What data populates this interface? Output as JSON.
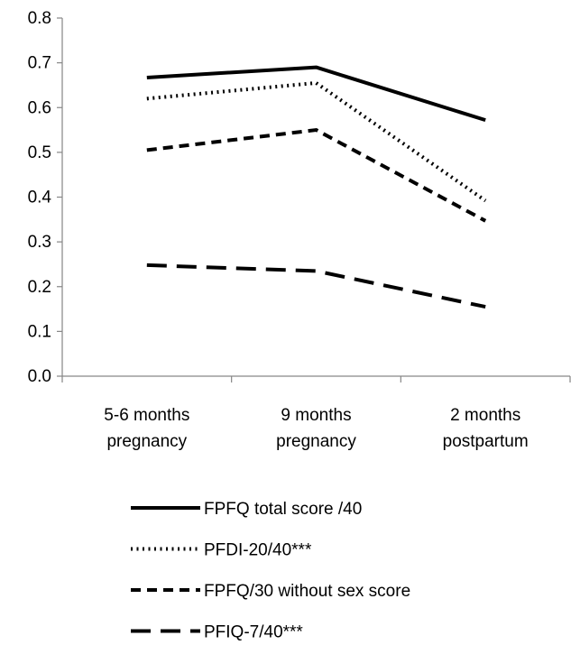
{
  "chart_data": {
    "type": "line",
    "title": "",
    "xlabel": "",
    "ylabel": "",
    "categories": [
      [
        "5-6 months",
        "pregnancy"
      ],
      [
        "9 months",
        "pregnancy"
      ],
      [
        "2 months",
        "postpartum"
      ]
    ],
    "ylim": [
      0,
      0.8
    ],
    "yticks": [
      "0.0",
      "0.1",
      "0.2",
      "0.3",
      "0.4",
      "0.5",
      "0.6",
      "0.7",
      "0.8"
    ],
    "grid": false,
    "legend_position": "bottom",
    "series": [
      {
        "name": "FPFQ total score /40",
        "values": [
          0.667,
          0.69,
          0.572
        ],
        "style": "solid",
        "color": "#000000"
      },
      {
        "name": "PFDI-20/40***",
        "values": [
          0.62,
          0.655,
          0.392
        ],
        "style": "dotted",
        "color": "#000000"
      },
      {
        "name": "FPFQ/30 without sex score",
        "values": [
          0.505,
          0.55,
          0.347
        ],
        "style": "dashed",
        "color": "#000000"
      },
      {
        "name": "PFIQ-7/40***",
        "values": [
          0.248,
          0.235,
          0.155
        ],
        "style": "long-dash",
        "color": "#000000"
      }
    ]
  }
}
